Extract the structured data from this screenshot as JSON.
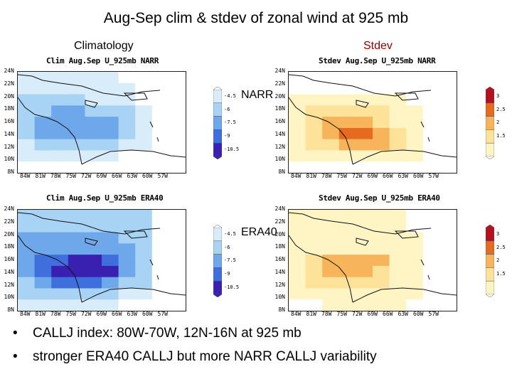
{
  "title": "Aug-Sep clim & stdev of zonal wind at 925 mb",
  "columns": {
    "clim": "Climatology",
    "stdev": "Stdev"
  },
  "rows": {
    "narr": "NARR",
    "era": "ERA40"
  },
  "panels": {
    "clim_narr": "Clim Aug.Sep U_925mb NARR",
    "stdev_narr": "Stdev Aug.Sep U_925mb NARR",
    "clim_era": "Clim Aug.Sep U_925mb ERA40",
    "stdev_era": "Stdev Aug.Sep U_925mb ERA40"
  },
  "lat_labels": [
    "24N",
    "22N",
    "20N",
    "18N",
    "16N",
    "14N",
    "12N",
    "10N",
    "8N"
  ],
  "lon_labels": [
    "84W",
    "81W",
    "78W",
    "75W",
    "72W",
    "69W",
    "66W",
    "63W",
    "60W",
    "57W"
  ],
  "clim_colorbar": [
    "-4.5",
    "-6",
    "-7.5",
    "-9",
    "-10.5"
  ],
  "stdev_colorbar": [
    "3",
    "2.5",
    "2",
    "1.5"
  ],
  "colors": {
    "clim": [
      "#ffffff",
      "#d8ecfa",
      "#a9d3f4",
      "#6ea7ea",
      "#3f6fdc",
      "#3a20b0"
    ],
    "stdev": [
      "#ffffff",
      "#fff4c4",
      "#fde29a",
      "#f7b45a",
      "#e66a20",
      "#b4101e"
    ]
  },
  "bullets": [
    "CALLJ index: 80W-70W, 12N-16N at 925 mb",
    "stronger ERA40 CALLJ but more NARR CALLJ variability"
  ]
}
